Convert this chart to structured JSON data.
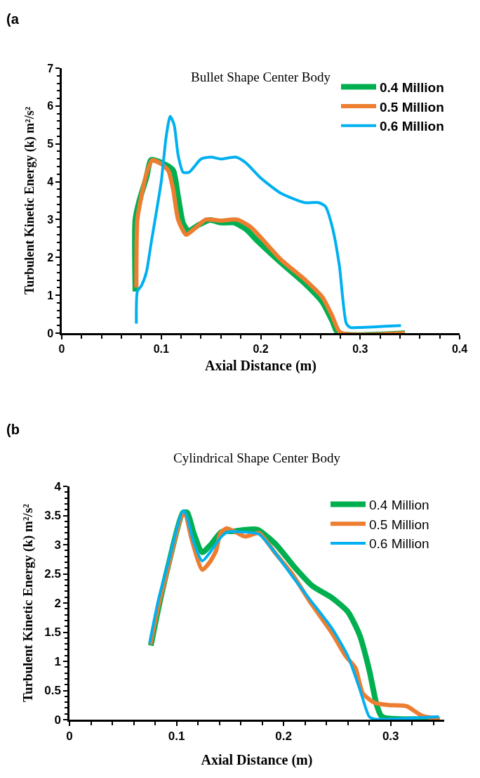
{
  "chart_data": [
    {
      "type": "line",
      "title": "Bullet Shape Center Body",
      "xlabel": "Axial Distance (m)",
      "ylabel": "Turbulent Kinetic Energy (k) m²/s²",
      "annotations": [
        "(a"
      ],
      "xlim": [
        0,
        0.4
      ],
      "xticks": [
        0,
        0.1,
        0.2,
        0.3,
        0.4
      ],
      "ylim": [
        0,
        7
      ],
      "yticks": [
        0,
        1,
        2,
        3,
        4,
        5,
        6,
        7
      ],
      "legend": "top right",
      "series": [
        {
          "name": "0.4 Million",
          "color": "#00b050",
          "x": [
            0.074,
            0.074,
            0.078,
            0.085,
            0.09,
            0.103,
            0.112,
            0.117,
            0.122,
            0.1275,
            0.137,
            0.149,
            0.16,
            0.173,
            0.185,
            0.197,
            0.22,
            0.244,
            0.262,
            0.272,
            0.278,
            0.345
          ],
          "values": [
            1.1,
            3.0,
            3.5,
            4.1,
            4.58,
            4.47,
            4.3,
            3.6,
            2.9,
            2.7,
            2.85,
            2.99,
            2.92,
            2.92,
            2.75,
            2.43,
            1.87,
            1.32,
            0.82,
            0.32,
            0.0,
            0.0
          ]
        },
        {
          "name": "0.5 Million",
          "color": "#ed7d31",
          "x": [
            0.075,
            0.076,
            0.08,
            0.085,
            0.091,
            0.1,
            0.107,
            0.112,
            0.117,
            0.125,
            0.133,
            0.145,
            0.16,
            0.176,
            0.19,
            0.22,
            0.245,
            0.262,
            0.272,
            0.28,
            0.345
          ],
          "values": [
            1.2,
            3.0,
            3.6,
            4.2,
            4.57,
            4.47,
            4.3,
            3.8,
            3.0,
            2.6,
            2.75,
            3.0,
            2.97,
            3.0,
            2.8,
            1.95,
            1.4,
            0.95,
            0.45,
            0.02,
            0.0
          ]
        },
        {
          "name": "0.6 Million",
          "color": "#00b0f0",
          "x": [
            0.075,
            0.076,
            0.08,
            0.085,
            0.09,
            0.1,
            0.105,
            0.109,
            0.113,
            0.117,
            0.122,
            0.128,
            0.14,
            0.15,
            0.16,
            0.175,
            0.185,
            0.2,
            0.22,
            0.244,
            0.258,
            0.265,
            0.272,
            0.279,
            0.286,
            0.29,
            0.3,
            0.341
          ],
          "values": [
            0.25,
            1.1,
            1.25,
            1.6,
            2.4,
            4.0,
            5.2,
            5.73,
            5.5,
            4.7,
            4.25,
            4.25,
            4.6,
            4.65,
            4.6,
            4.65,
            4.5,
            4.1,
            3.7,
            3.45,
            3.45,
            3.35,
            2.8,
            1.8,
            0.26,
            0.15,
            0.15,
            0.2
          ]
        }
      ]
    },
    {
      "type": "line",
      "title": "Cylindrical Shape Center Body",
      "xlabel": "Axial Distance (m)",
      "ylabel": "Turbulent Kinetic Energy (k) m²/s²",
      "annotations": [
        "(b"
      ],
      "xlim": [
        0,
        0.35
      ],
      "xticks": [
        0,
        0.1,
        0.2,
        0.3
      ],
      "ylim": [
        0,
        4
      ],
      "yticks": [
        0,
        0.5,
        1,
        1.5,
        2,
        2.5,
        3,
        3.5,
        4
      ],
      "legend": "top right",
      "series": [
        {
          "name": "0.4 Million",
          "color": "#00b050",
          "x": [
            0.076,
            0.083,
            0.092,
            0.106,
            0.11,
            0.116,
            0.124,
            0.132,
            0.142,
            0.153,
            0.175,
            0.192,
            0.21,
            0.227,
            0.245,
            0.26,
            0.271,
            0.28,
            0.287,
            0.292,
            0.345
          ],
          "values": [
            1.27,
            1.9,
            2.62,
            3.55,
            3.55,
            3.2,
            2.87,
            3.0,
            3.22,
            3.23,
            3.26,
            3.02,
            2.62,
            2.29,
            2.09,
            1.85,
            1.45,
            0.85,
            0.25,
            0.05,
            0.02
          ]
        },
        {
          "name": "0.5 Million",
          "color": "#ed7d31",
          "x": [
            0.0755,
            0.083,
            0.092,
            0.105,
            0.108,
            0.114,
            0.124,
            0.131,
            0.137,
            0.141,
            0.147,
            0.164,
            0.177,
            0.192,
            0.208,
            0.225,
            0.245,
            0.258,
            0.267,
            0.274,
            0.285,
            0.298,
            0.315,
            0.329,
            0.346
          ],
          "values": [
            1.29,
            1.95,
            2.6,
            3.5,
            3.52,
            3.1,
            2.57,
            2.7,
            2.9,
            3.2,
            3.28,
            3.14,
            3.2,
            2.86,
            2.5,
            2.01,
            1.49,
            1.09,
            0.89,
            0.45,
            0.29,
            0.25,
            0.23,
            0.07,
            0.01
          ]
        },
        {
          "name": "0.6 Million",
          "color": "#00b0f0",
          "x": [
            0.0748,
            0.083,
            0.0917,
            0.1059,
            0.109,
            0.1157,
            0.124,
            0.131,
            0.142,
            0.148,
            0.159,
            0.177,
            0.192,
            0.208,
            0.225,
            0.245,
            0.26,
            0.271,
            0.28,
            0.285,
            0.345
          ],
          "values": [
            1.31,
            2.05,
            2.65,
            3.58,
            3.52,
            3.06,
            2.72,
            2.86,
            3.14,
            3.22,
            3.22,
            3.18,
            2.86,
            2.46,
            2.05,
            1.57,
            1.09,
            0.53,
            0.05,
            0.01,
            0.05
          ]
        }
      ]
    }
  ]
}
